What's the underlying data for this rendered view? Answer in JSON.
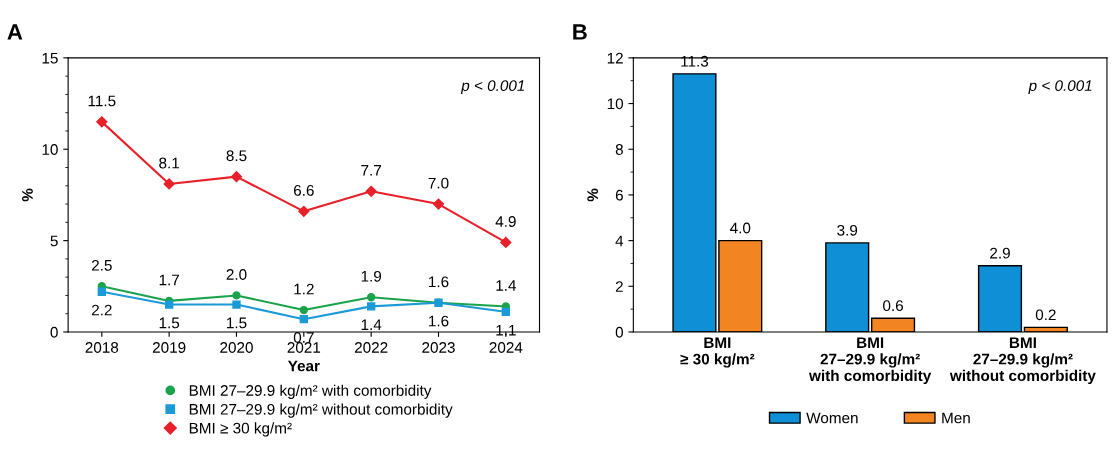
{
  "chart_data": [
    {
      "type": "line",
      "title": "A",
      "xlabel": "Year",
      "ylabel": "%",
      "categories": [
        "2018",
        "2019",
        "2020",
        "2021",
        "2022",
        "2023",
        "2024"
      ],
      "series": [
        {
          "name": "BMI 27–29.9 kg/m² with comorbidity",
          "color": "#1aa34a",
          "marker": "circle",
          "values": [
            2.5,
            1.7,
            2.0,
            1.2,
            1.9,
            1.6,
            1.4
          ],
          "value_labels": [
            "2.5",
            "1.7",
            "2.0",
            "1.2",
            "1.9",
            "1.6",
            "1.4"
          ]
        },
        {
          "name": "BMI 27–29.9 kg/m² without comorbidity",
          "color": "#1a9ad6",
          "marker": "square",
          "values": [
            2.2,
            1.5,
            1.5,
            0.7,
            1.4,
            1.6,
            1.1
          ],
          "value_labels": [
            "2.2",
            "1.5",
            "1.5",
            "0.7",
            "1.4",
            "1.6",
            "1.1"
          ]
        },
        {
          "name": "BMI ≥ 30 kg/m²",
          "color": "#e8202a",
          "marker": "diamond",
          "values": [
            11.5,
            8.1,
            8.5,
            6.6,
            7.7,
            7.0,
            4.9
          ],
          "value_labels": [
            "11.5",
            "8.1",
            "8.5",
            "6.6",
            "7.7",
            "7.0",
            "4.9"
          ]
        }
      ],
      "ylim": [
        0,
        15
      ],
      "yticks": [
        0,
        5,
        10,
        15
      ],
      "grid": false,
      "legend": "bottom",
      "line_style": "solid",
      "annotations": [
        "p < 0.001"
      ]
    },
    {
      "type": "bar",
      "title": "B",
      "ylabel": "%",
      "categories": [
        "BMI\n≥ 30 kg/m²",
        "BMI\n27–29.9 kg/m²\nwith comorbidity",
        "BMI\n27–29.9 kg/m²\nwithout comorbidity"
      ],
      "series": [
        {
          "name": "Women",
          "color": "#0f8fd6",
          "values": [
            11.3,
            3.9,
            2.9
          ],
          "value_labels": [
            "11.3",
            "3.9",
            "2.9"
          ]
        },
        {
          "name": "Men",
          "color": "#f28522",
          "values": [
            4.0,
            0.6,
            0.2
          ],
          "value_labels": [
            "4.0",
            "0.6",
            "0.2"
          ]
        }
      ],
      "ylim": [
        0,
        12
      ],
      "yticks": [
        0,
        2,
        4,
        6,
        8,
        10,
        12
      ],
      "grid": false,
      "legend": "bottom",
      "annotations": [
        "p < 0.001"
      ]
    }
  ]
}
